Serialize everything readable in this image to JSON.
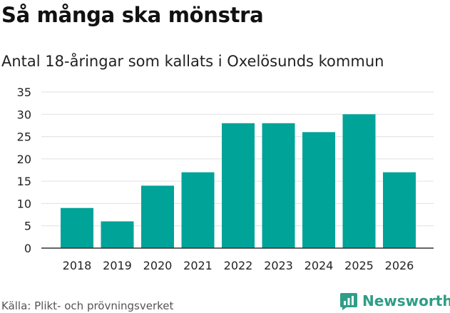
{
  "title": "Så många ska mönstra",
  "subtitle": "Antal 18-åringar som kallats i Oxelösunds kommun",
  "source": "Källa: Plikt- och prövningsverket",
  "brand": {
    "name": "Newsworthy",
    "color": "#2f9d87",
    "icon": "newsworthy-logo-icon"
  },
  "chart_data": {
    "type": "bar",
    "title": "Så många ska mönstra",
    "subtitle": "Antal 18-åringar som kallats i Oxelösunds kommun",
    "xlabel": "",
    "ylabel": "",
    "categories": [
      "2018",
      "2019",
      "2020",
      "2021",
      "2022",
      "2023",
      "2024",
      "2025",
      "2026"
    ],
    "values": [
      9,
      6,
      14,
      17,
      28,
      28,
      26,
      30,
      17
    ],
    "ylim": [
      0,
      35
    ],
    "yticks": [
      0,
      5,
      10,
      15,
      20,
      25,
      30,
      35
    ],
    "grid": true,
    "bar_color": "#00a398",
    "grid_color": "#e0e0e0",
    "axis_color": "#333333"
  }
}
